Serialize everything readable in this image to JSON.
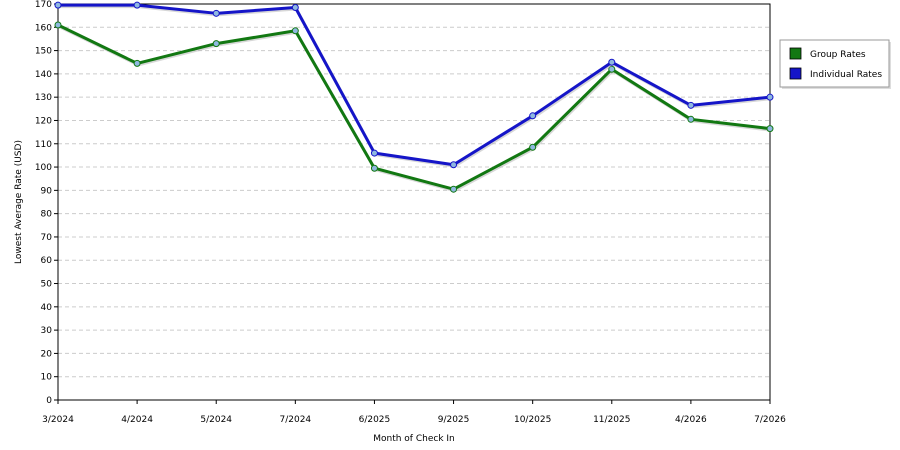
{
  "chart_data": {
    "type": "line",
    "title": "",
    "xlabel": "Month of Check In",
    "ylabel": "Lowest Average Rate (USD)",
    "categories": [
      "3/2024",
      "4/2024",
      "5/2024",
      "7/2024",
      "6/2025",
      "9/2025",
      "10/2025",
      "11/2025",
      "4/2026",
      "7/2026"
    ],
    "ylim": [
      0,
      170
    ],
    "yticks": [
      0,
      10,
      20,
      30,
      40,
      50,
      60,
      70,
      80,
      90,
      100,
      110,
      120,
      130,
      140,
      150,
      160,
      170
    ],
    "grid": true,
    "legend_position": "right",
    "series": [
      {
        "name": "Group Rates",
        "color": "#127812",
        "values": [
          161,
          144.5,
          153,
          158.5,
          99.5,
          90.5,
          108.5,
          142,
          120.5,
          116.5
        ]
      },
      {
        "name": "Individual Rates",
        "color": "#1515c8",
        "values": [
          169.5,
          169.5,
          166,
          168.5,
          106,
          101,
          122,
          145,
          126.5,
          130
        ]
      }
    ]
  }
}
